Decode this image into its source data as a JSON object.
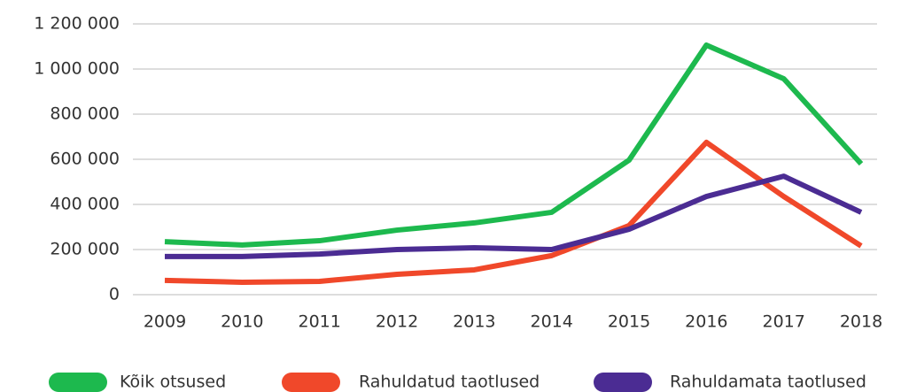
{
  "chart_data": {
    "type": "line",
    "categories": [
      "2009",
      "2010",
      "2011",
      "2012",
      "2013",
      "2014",
      "2015",
      "2016",
      "2017",
      "2018"
    ],
    "series": [
      {
        "name": "Kõik otsused",
        "color": "#1db94e",
        "values": [
          235000,
          220000,
          239000,
          286000,
          318000,
          365000,
          596000,
          1106000,
          957000,
          580000
        ]
      },
      {
        "name": "Rahuldatud taotlused",
        "color": "#f0482a",
        "values": [
          63000,
          55000,
          59000,
          90000,
          110000,
          173000,
          306000,
          675000,
          435000,
          216000
        ]
      },
      {
        "name": "Rahuldamata taotlused",
        "color": "#4b2c93",
        "values": [
          169000,
          169000,
          180000,
          200000,
          208000,
          200000,
          290000,
          435000,
          525000,
          365000
        ]
      }
    ],
    "ylim": [
      0,
      1200000
    ],
    "yticks": [
      0,
      {
        "value": 200000,
        "label": "200 000"
      },
      {
        "value": 400000,
        "label": "400 000"
      },
      {
        "value": 600000,
        "label": "600 000"
      },
      {
        "value": 800000,
        "label": "800 000"
      },
      {
        "value": 1000000,
        "label": "1 000 000"
      },
      {
        "value": 1200000,
        "label": "1 200 000"
      }
    ],
    "grid": true,
    "legend": "bottom"
  }
}
